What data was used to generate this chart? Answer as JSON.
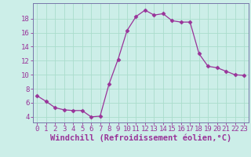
{
  "x": [
    0,
    1,
    2,
    3,
    4,
    5,
    6,
    7,
    8,
    9,
    10,
    11,
    12,
    13,
    14,
    15,
    16,
    17,
    18,
    19,
    20,
    21,
    22,
    23
  ],
  "y": [
    7.0,
    6.2,
    5.3,
    5.0,
    4.9,
    4.9,
    4.0,
    4.1,
    8.7,
    12.2,
    16.3,
    18.3,
    19.2,
    18.5,
    18.7,
    17.7,
    17.5,
    17.5,
    13.0,
    11.2,
    11.0,
    10.5,
    10.0,
    9.9
  ],
  "line_color": "#993399",
  "marker": "D",
  "marker_size": 2.5,
  "bg_color": "#cceee8",
  "grid_color": "#aaddcc",
  "xlabel": "Windchill (Refroidissement éolien,°C)",
  "xlabel_color": "#993399",
  "xtick_labels": [
    "0",
    "1",
    "2",
    "3",
    "4",
    "5",
    "6",
    "7",
    "8",
    "9",
    "10",
    "11",
    "12",
    "13",
    "14",
    "15",
    "16",
    "17",
    "18",
    "19",
    "20",
    "21",
    "22",
    "23"
  ],
  "ytick_values": [
    4,
    6,
    8,
    10,
    12,
    14,
    16,
    18
  ],
  "ylim": [
    3.2,
    20.2
  ],
  "xlim": [
    -0.5,
    23.5
  ],
  "tick_color": "#993399",
  "tick_fontsize": 6.5,
  "xlabel_fontsize": 7.5,
  "spine_color": "#7777aa"
}
